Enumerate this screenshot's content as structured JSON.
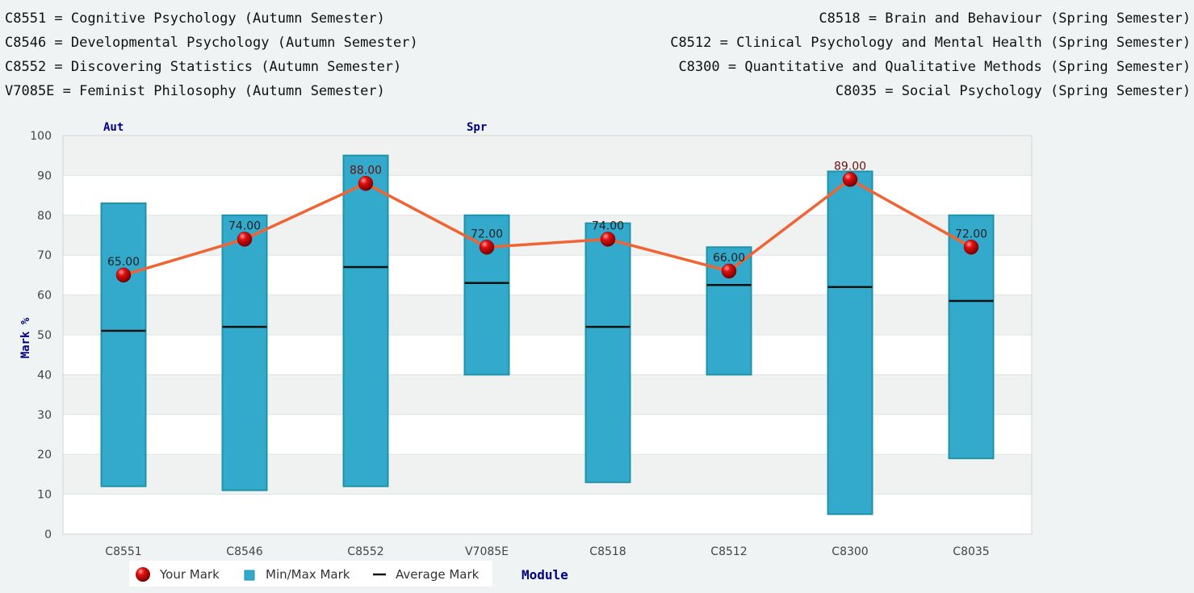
{
  "module_key": {
    "left": [
      "C8551 = Cognitive Psychology (Autumn Semester)",
      "C8546 = Developmental Psychology (Autumn Semester)",
      "C8552 = Discovering Statistics (Autumn Semester)",
      "V7085E = Feminist Philosophy (Autumn Semester)"
    ],
    "right": [
      "C8518 = Brain and Behaviour (Spring Semester)",
      "C8512 = Clinical Psychology and Mental Health (Spring Semester)",
      "C8300 = Quantitative and Qualitative Methods (Spring Semester)",
      "C8035 = Social Psychology (Spring Semester)"
    ]
  },
  "chart_data": {
    "type": "bar",
    "categories": [
      "C8551",
      "C8546",
      "C8552",
      "V7085E",
      "C8518",
      "C8512",
      "C8300",
      "C8035"
    ],
    "series": [
      {
        "name": "Your Mark",
        "values": [
          65,
          74,
          88,
          72,
          74,
          66,
          89,
          72
        ]
      },
      {
        "name": "Min/Max Mark",
        "min": [
          12,
          11,
          12,
          40,
          13,
          40,
          5,
          19
        ],
        "max": [
          83,
          80,
          95,
          80,
          78,
          72,
          91,
          80
        ]
      },
      {
        "name": "Average Mark",
        "values": [
          51,
          52,
          67,
          63,
          52,
          62.5,
          62,
          58.5
        ]
      }
    ],
    "data_labels": [
      "65.00",
      "74.00",
      "88.00",
      "72.00",
      "74.00",
      "66.00",
      "89.00",
      "72.00"
    ],
    "semester_labels": [
      {
        "text": "Aut",
        "category": "C8551"
      },
      {
        "text": "Spr",
        "category": "V7085E"
      }
    ],
    "xlabel": "Module",
    "ylabel": "Mark %",
    "ylim": [
      0,
      100
    ],
    "yticks": [
      "0",
      "10",
      "20",
      "30",
      "40",
      "50",
      "60",
      "70",
      "80",
      "90",
      "100"
    ],
    "grid": true,
    "legend_position": "bottom",
    "colors": {
      "bar_fill": "#33a9cc",
      "bar_stroke": "#1f93a8",
      "line": "#f06434",
      "marker": "#cc0000",
      "average": "#111111",
      "axis_title": "#000080"
    }
  }
}
